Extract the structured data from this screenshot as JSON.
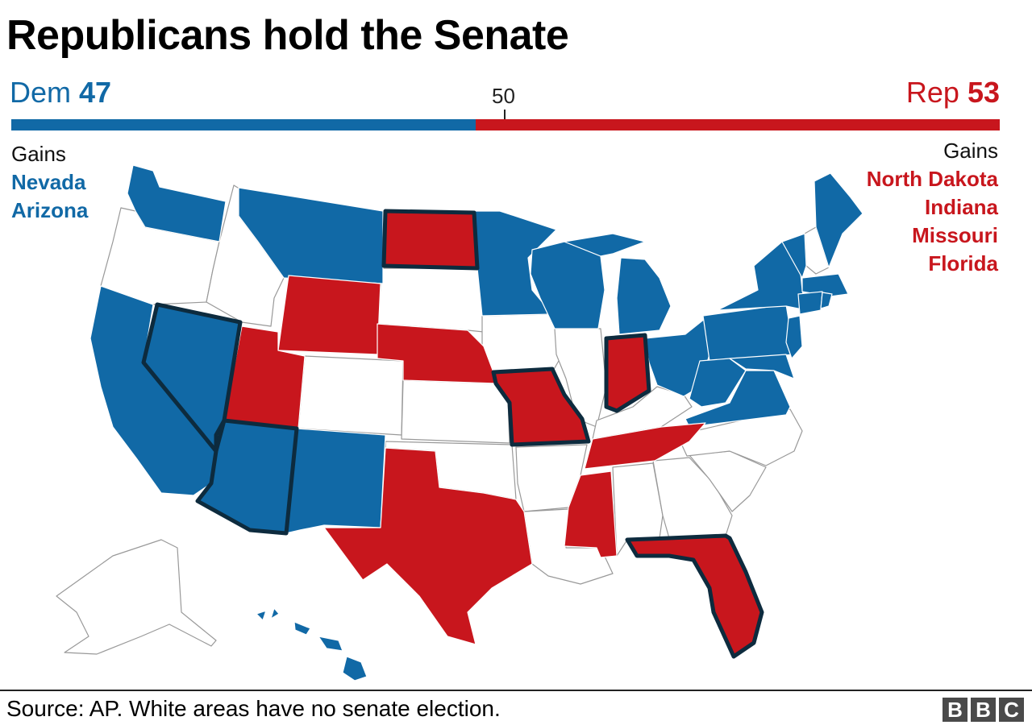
{
  "title": "Republicans hold the Senate",
  "tally": {
    "dem": {
      "party": "Dem",
      "seats": "47",
      "color": "#1169a6"
    },
    "rep": {
      "party": "Rep",
      "seats": "53",
      "color": "#c8161d"
    },
    "majority_mark": "50",
    "dem_seats_value": 47,
    "total_seats_value": 100
  },
  "gains": {
    "dem": {
      "heading": "Gains",
      "states": [
        "Nevada",
        "Arizona"
      ]
    },
    "rep": {
      "heading": "Gains",
      "states": [
        "North Dakota",
        "Indiana",
        "Missouri",
        "Florida"
      ]
    }
  },
  "legend_colors": {
    "dem": "#1169a6",
    "rep": "#c8161d",
    "no_election": "#ffffff",
    "gain_outline": "#0d2b3e"
  },
  "map": {
    "dem_states": [
      "Washington",
      "Montana",
      "Minnesota",
      "Wisconsin",
      "Michigan",
      "California",
      "Nevada",
      "Arizona",
      "New Mexico",
      "Ohio",
      "Pennsylvania",
      "West Virginia",
      "Virginia",
      "New York",
      "Vermont",
      "Maine",
      "Massachusetts",
      "Connecticut",
      "Rhode Island",
      "New Jersey",
      "Delaware",
      "Maryland",
      "Hawaii"
    ],
    "rep_states": [
      "North Dakota",
      "Wyoming",
      "Utah",
      "Nebraska",
      "Texas",
      "Missouri",
      "Indiana",
      "Mississippi",
      "Tennessee",
      "Florida"
    ],
    "gain_states": [
      "Nevada",
      "Arizona",
      "North Dakota",
      "Indiana",
      "Missouri",
      "Florida"
    ]
  },
  "footer": {
    "source": "Source: AP. White areas have no senate election.",
    "logo": [
      "B",
      "B",
      "C"
    ]
  }
}
